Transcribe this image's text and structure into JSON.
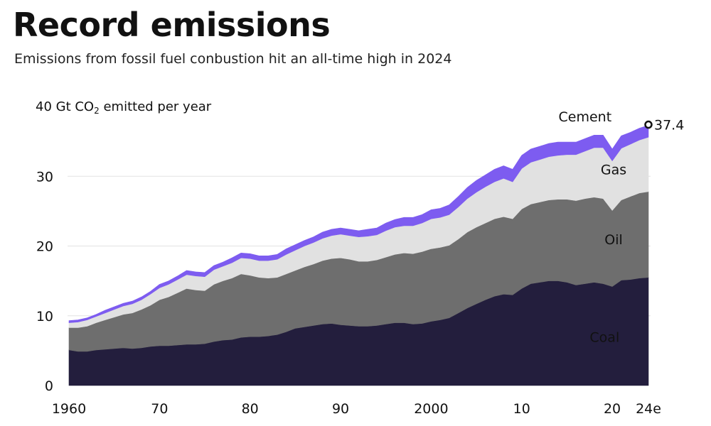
{
  "title": "Record emissions",
  "subtitle": "Emissions from fossil fuel conbustion hit an all-time high in 2024",
  "chart_data": {
    "type": "area",
    "stacked": true,
    "ylabel_prefix": "40",
    "ylabel_text": "Gt CO",
    "ylabel_sub": "2",
    "ylabel_suffix": " emitted per year",
    "ylim": [
      0,
      40
    ],
    "y_ticks": [
      0,
      10,
      20,
      30
    ],
    "x_ticks": [
      {
        "value": 1960,
        "label": "1960"
      },
      {
        "value": 1970,
        "label": "70"
      },
      {
        "value": 1980,
        "label": "80"
      },
      {
        "value": 1990,
        "label": "90"
      },
      {
        "value": 2000,
        "label": "2000"
      },
      {
        "value": 2010,
        "label": "10"
      },
      {
        "value": 2020,
        "label": "20"
      },
      {
        "value": 2024,
        "label": "24e"
      }
    ],
    "x": [
      1960,
      1961,
      1962,
      1963,
      1964,
      1965,
      1966,
      1967,
      1968,
      1969,
      1970,
      1971,
      1972,
      1973,
      1974,
      1975,
      1976,
      1977,
      1978,
      1979,
      1980,
      1981,
      1982,
      1983,
      1984,
      1985,
      1986,
      1987,
      1988,
      1989,
      1990,
      1991,
      1992,
      1993,
      1994,
      1995,
      1996,
      1997,
      1998,
      1999,
      2000,
      2001,
      2002,
      2003,
      2004,
      2005,
      2006,
      2007,
      2008,
      2009,
      2010,
      2011,
      2012,
      2013,
      2014,
      2015,
      2016,
      2017,
      2018,
      2019,
      2020,
      2021,
      2022,
      2023,
      2024
    ],
    "series": [
      {
        "name": "Coal",
        "color": "#231e3d",
        "values": [
          5.1,
          4.9,
          4.9,
          5.1,
          5.2,
          5.3,
          5.4,
          5.3,
          5.4,
          5.6,
          5.7,
          5.7,
          5.8,
          5.9,
          5.9,
          6.0,
          6.3,
          6.5,
          6.6,
          6.9,
          7.0,
          7.0,
          7.1,
          7.3,
          7.7,
          8.2,
          8.4,
          8.6,
          8.8,
          8.9,
          8.7,
          8.6,
          8.5,
          8.5,
          8.6,
          8.8,
          9.0,
          9.0,
          8.8,
          8.9,
          9.2,
          9.4,
          9.7,
          10.4,
          11.1,
          11.7,
          12.3,
          12.8,
          13.1,
          13.0,
          13.9,
          14.6,
          14.8,
          15.0,
          15.0,
          14.8,
          14.4,
          14.6,
          14.8,
          14.6,
          14.2,
          15.1,
          15.2,
          15.4,
          15.5
        ]
      },
      {
        "name": "Oil",
        "color": "#6e6e6e",
        "values": [
          3.2,
          3.4,
          3.6,
          3.9,
          4.2,
          4.5,
          4.8,
          5.1,
          5.5,
          5.9,
          6.6,
          7.0,
          7.5,
          8.0,
          7.8,
          7.6,
          8.2,
          8.5,
          8.8,
          9.1,
          8.8,
          8.5,
          8.3,
          8.2,
          8.3,
          8.3,
          8.6,
          8.8,
          9.1,
          9.3,
          9.6,
          9.5,
          9.3,
          9.3,
          9.4,
          9.6,
          9.8,
          10.0,
          10.1,
          10.3,
          10.4,
          10.4,
          10.4,
          10.6,
          10.9,
          11.0,
          11.0,
          11.1,
          11.1,
          10.9,
          11.4,
          11.4,
          11.5,
          11.6,
          11.7,
          11.9,
          12.1,
          12.2,
          12.2,
          12.2,
          10.9,
          11.5,
          11.9,
          12.2,
          12.3
        ]
      },
      {
        "name": "Gas",
        "color": "#e1e1e1",
        "values": [
          0.7,
          0.8,
          0.9,
          0.9,
          1.0,
          1.1,
          1.2,
          1.3,
          1.4,
          1.6,
          1.7,
          1.8,
          1.9,
          2.0,
          2.0,
          2.0,
          2.1,
          2.1,
          2.2,
          2.3,
          2.4,
          2.4,
          2.5,
          2.6,
          2.8,
          2.9,
          3.0,
          3.1,
          3.2,
          3.3,
          3.4,
          3.4,
          3.5,
          3.6,
          3.6,
          3.8,
          3.9,
          3.9,
          4.0,
          4.1,
          4.3,
          4.3,
          4.4,
          4.6,
          4.8,
          5.0,
          5.2,
          5.3,
          5.5,
          5.3,
          5.8,
          6.0,
          6.1,
          6.2,
          6.3,
          6.4,
          6.6,
          6.8,
          7.1,
          7.3,
          7.1,
          7.4,
          7.5,
          7.6,
          7.8
        ]
      },
      {
        "name": "Cement",
        "color": "#7d5cf0",
        "values": [
          0.3,
          0.3,
          0.3,
          0.3,
          0.4,
          0.4,
          0.4,
          0.4,
          0.4,
          0.4,
          0.5,
          0.5,
          0.5,
          0.6,
          0.6,
          0.6,
          0.6,
          0.6,
          0.7,
          0.7,
          0.7,
          0.7,
          0.7,
          0.7,
          0.8,
          0.8,
          0.8,
          0.8,
          0.9,
          0.9,
          0.9,
          0.9,
          0.9,
          1.0,
          1.0,
          1.1,
          1.1,
          1.2,
          1.2,
          1.2,
          1.3,
          1.3,
          1.4,
          1.5,
          1.6,
          1.7,
          1.7,
          1.8,
          1.8,
          1.8,
          1.9,
          1.9,
          1.9,
          1.9,
          1.9,
          1.8,
          1.8,
          1.8,
          1.8,
          1.8,
          1.7,
          1.8,
          1.7,
          1.7,
          1.7
        ]
      }
    ],
    "endpoint": {
      "year": 2024,
      "label": "37.4"
    }
  }
}
